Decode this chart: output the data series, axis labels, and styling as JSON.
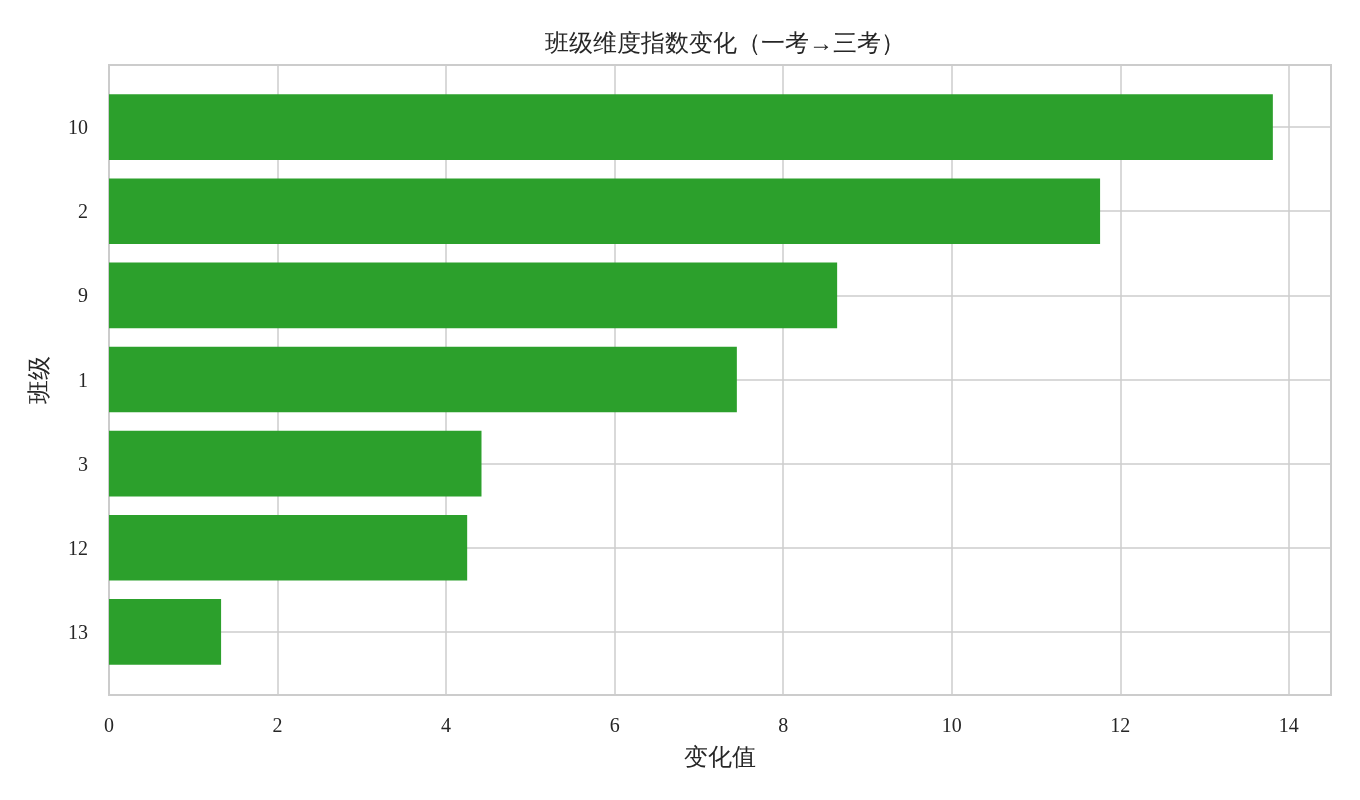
{
  "chart_data": {
    "type": "bar",
    "title": "班级维度指数变化（一考→三考）",
    "xlabel": "变化值",
    "ylabel": "班级",
    "orientation": "horizontal",
    "categories": [
      "10",
      "2",
      "9",
      "1",
      "3",
      "12",
      "13"
    ],
    "values": [
      13.81,
      11.76,
      8.64,
      7.45,
      4.42,
      4.25,
      1.33
    ],
    "color": "#2ca02c",
    "xlim": [
      0,
      14.5
    ],
    "xticks": [
      0,
      2,
      4,
      6,
      8,
      10,
      12,
      14
    ],
    "grid": true
  }
}
